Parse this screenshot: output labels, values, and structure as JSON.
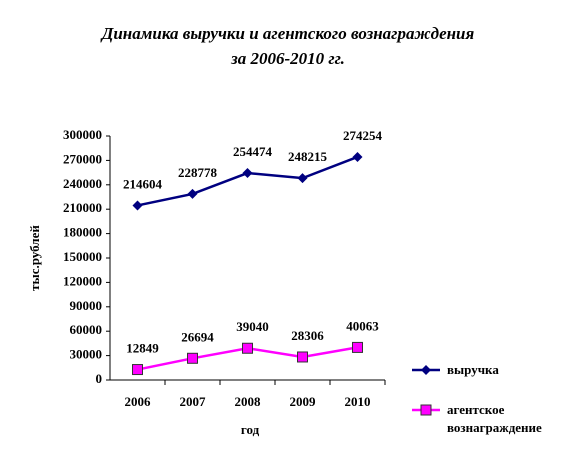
{
  "chart_data": {
    "type": "line",
    "title": "Динамика выручки и агентского вознаграждения",
    "subtitle": "за 2006-2010 гг.",
    "x_label": "год",
    "y_label": "тыс.рублей",
    "categories": [
      "2006",
      "2007",
      "2008",
      "2009",
      "2010"
    ],
    "series": [
      {
        "name": "выручка",
        "color": "#000080",
        "marker": "diamond",
        "values": [
          214604,
          228778,
          254474,
          248215,
          274254
        ]
      },
      {
        "name": "агентское вознаграждение",
        "color": "#ff00ff",
        "marker": "square",
        "values": [
          12849,
          26694,
          39040,
          28306,
          40063
        ]
      }
    ],
    "ylim": [
      0,
      300000
    ],
    "yticks": [
      0,
      30000,
      60000,
      90000,
      120000,
      150000,
      180000,
      210000,
      240000,
      270000,
      300000
    ],
    "grid": false,
    "legend": "right"
  }
}
